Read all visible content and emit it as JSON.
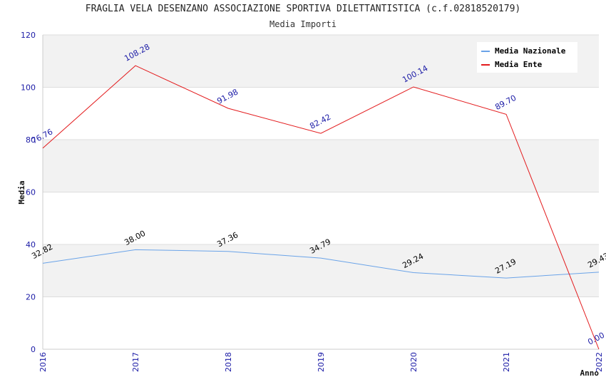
{
  "chart_data": {
    "type": "line",
    "title": "FRAGLIA VELA DESENZANO ASSOCIAZIONE SPORTIVA DILETTANTISTICA (c.f.02818520179)",
    "subtitle": "Media Importi",
    "xlabel": "Anno",
    "ylabel": "Media",
    "ylim": [
      0,
      120
    ],
    "yticks": [
      "0",
      "20",
      "40",
      "60",
      "80",
      "100",
      "120"
    ],
    "categories": [
      "2016",
      "2017",
      "2018",
      "2019",
      "2020",
      "2021",
      "2022"
    ],
    "series": [
      {
        "name": "Media Nazionale",
        "color": "#6aa3e8",
        "label_color": "#000000",
        "values": [
          32.82,
          38.0,
          37.36,
          34.79,
          29.24,
          27.19,
          29.43
        ],
        "labels": [
          "32.82",
          "38.00",
          "37.36",
          "34.79",
          "29.24",
          "27.19",
          "29.43"
        ]
      },
      {
        "name": "Media Ente",
        "color": "#e31a1c",
        "label_color": "#1a1aa6",
        "values": [
          76.76,
          108.28,
          91.98,
          82.42,
          100.14,
          89.7,
          0.0
        ],
        "labels": [
          "76.76",
          "108.28",
          "91.98",
          "82.42",
          "100.14",
          "89.70",
          "0.00"
        ]
      }
    ],
    "legend_position": "top-right",
    "grid": true
  }
}
